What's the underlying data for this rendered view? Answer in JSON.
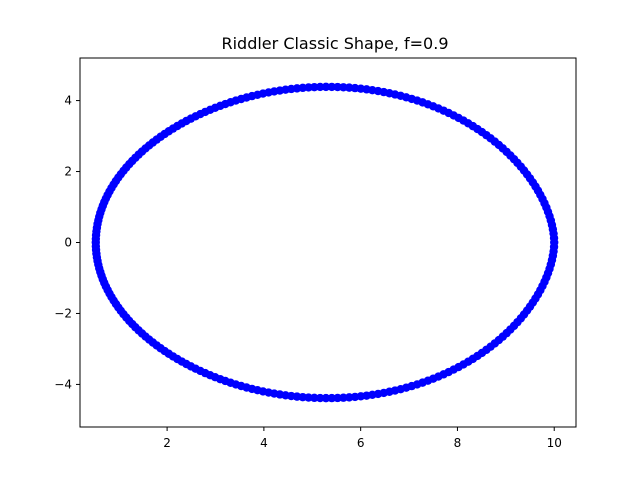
{
  "chart_data": {
    "type": "scatter",
    "title": "Riddler Classic Shape, f=0.9",
    "xlabel": "",
    "ylabel": "",
    "xlim": [
      0.2,
      10.45
    ],
    "ylim": [
      -5.2,
      5.2
    ],
    "xticks": [
      2,
      4,
      6,
      8,
      10
    ],
    "yticks": [
      -4,
      -2,
      0,
      2,
      4
    ],
    "grid": false,
    "marker_color": "#0000ff",
    "axis_color": "#000000",
    "background": "#ffffff",
    "curve": {
      "description_param": "polar closed curve sampled as points",
      "x_min": 0.526,
      "x_max": 10.0,
      "y_extent": 4.75,
      "y_extent_x": 5.2
    },
    "series": [
      {
        "points": []
      }
    ]
  }
}
